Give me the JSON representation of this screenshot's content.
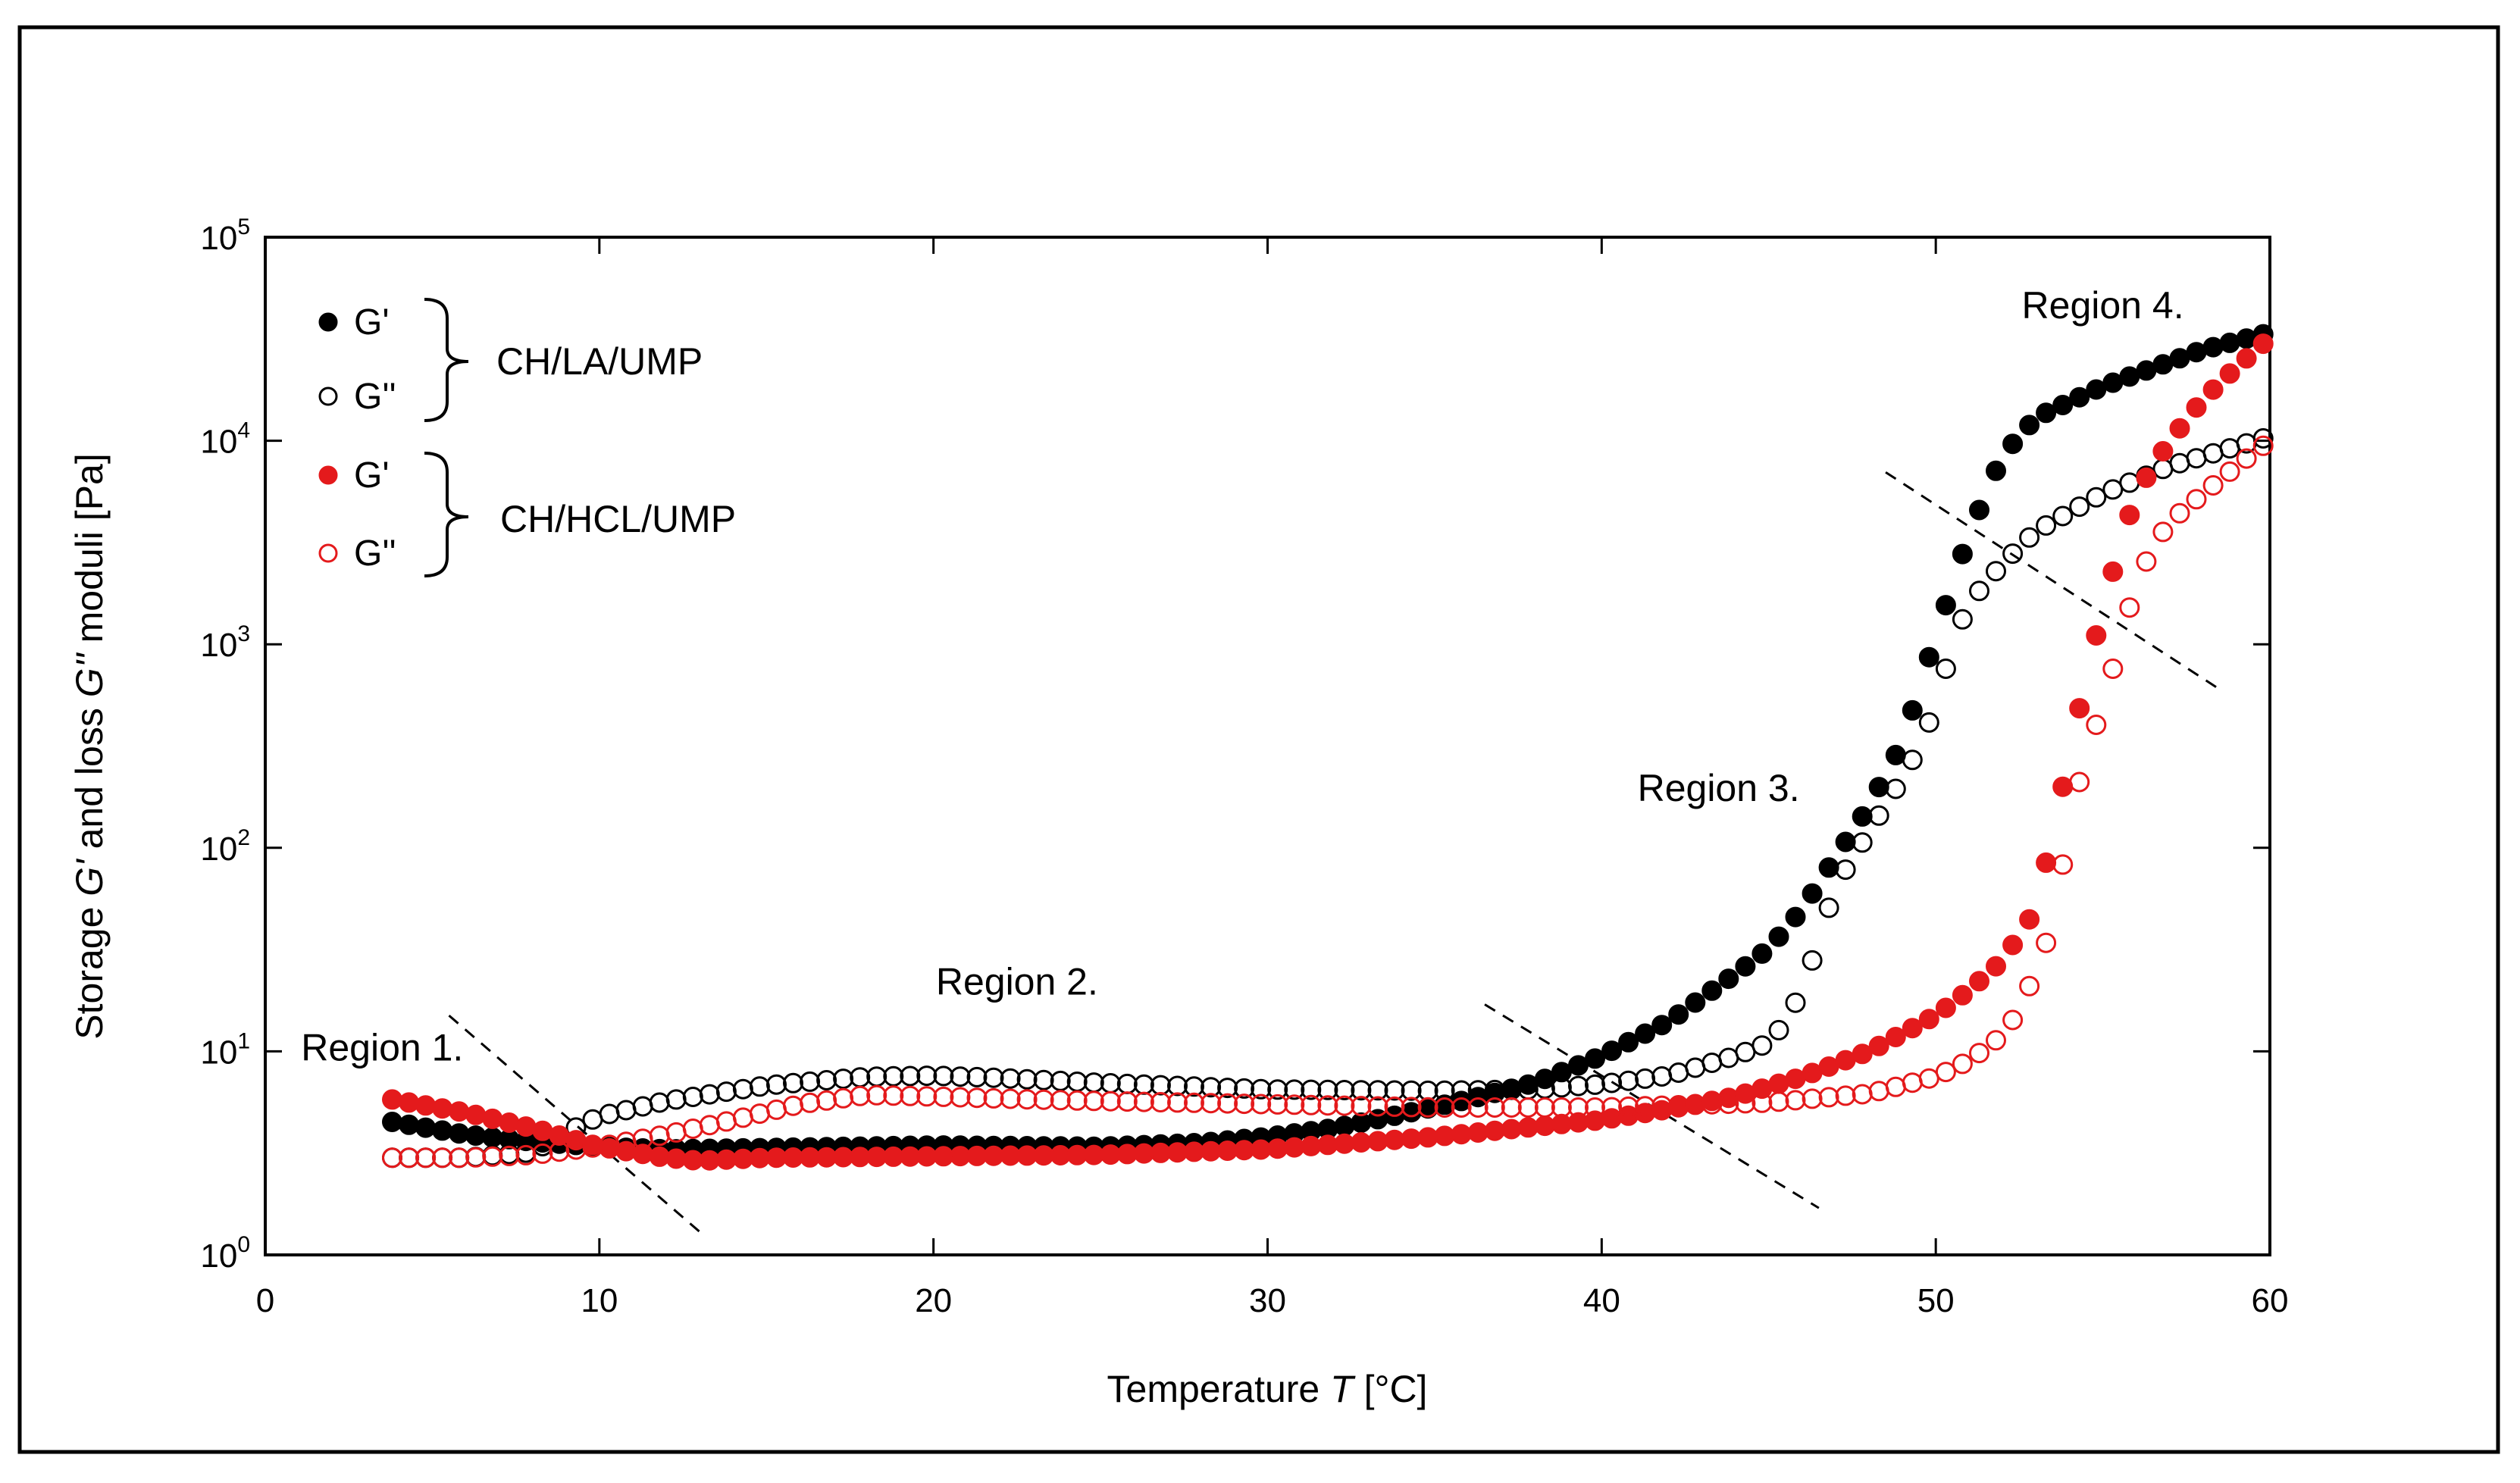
{
  "chart_data": {
    "type": "scatter",
    "xlabel_prefix": "Temperature ",
    "xlabel_var": "T",
    "xlabel_suffix": " [°C]",
    "ylabel_parts": [
      "Storage ",
      "G'",
      " and loss ",
      "G''",
      " moduli [Pa]"
    ],
    "xlim": [
      0,
      60
    ],
    "ylim": [
      1,
      100000
    ],
    "yscale": "log",
    "x_ticks": [
      "0",
      "10",
      "20",
      "30",
      "40",
      "50",
      "60"
    ],
    "y_ticks": [
      {
        "base": "10",
        "exp": "0"
      },
      {
        "base": "10",
        "exp": "1"
      },
      {
        "base": "10",
        "exp": "2"
      },
      {
        "base": "10",
        "exp": "3"
      },
      {
        "base": "10",
        "exp": "4"
      },
      {
        "base": "10",
        "exp": "5"
      }
    ],
    "grid": false,
    "legend_position": "top-left",
    "legend": {
      "groups": [
        {
          "name": "CH/LA/UMP",
          "entries": [
            "G'",
            "G''"
          ],
          "color": "#000000"
        },
        {
          "name": "CH/HCL/UMP",
          "entries": [
            "G'",
            "G''"
          ],
          "color": "#e41a1c"
        }
      ]
    },
    "annotations": [
      {
        "text": "Region 1.",
        "x": 3.5,
        "y": 9.0
      },
      {
        "text": "Region 2.",
        "x": 22.5,
        "y": 19.0
      },
      {
        "text": "Region 3.",
        "x": 43.5,
        "y": 170.0
      },
      {
        "text": "Region 4.",
        "x": 55.0,
        "y": 40000.0
      }
    ],
    "dashed_lines": [
      [
        [
          5.5,
          15
        ],
        [
          13.0,
          1.3
        ]
      ],
      [
        [
          36.5,
          17
        ],
        [
          46.5,
          1.7
        ]
      ],
      [
        [
          48.5,
          7000
        ],
        [
          58.5,
          600
        ]
      ]
    ],
    "series": [
      {
        "name": "CH/LA/UMP G'",
        "color": "#000000",
        "filled": true,
        "anchors": [
          [
            3.8,
            4.5
          ],
          [
            6,
            3.9
          ],
          [
            8,
            3.6
          ],
          [
            10,
            3.4
          ],
          [
            12,
            3.3
          ],
          [
            15,
            3.35
          ],
          [
            20,
            3.45
          ],
          [
            25,
            3.4
          ],
          [
            28,
            3.55
          ],
          [
            30,
            3.8
          ],
          [
            32,
            4.2
          ],
          [
            34,
            4.9
          ],
          [
            36,
            5.8
          ],
          [
            38,
            7.0
          ],
          [
            40,
            9.5
          ],
          [
            42,
            14
          ],
          [
            44,
            24
          ],
          [
            45,
            32
          ],
          [
            46,
            50
          ],
          [
            47,
            90
          ],
          [
            48,
            160
          ],
          [
            49,
            330
          ],
          [
            50,
            1100
          ],
          [
            51,
            3500
          ],
          [
            52,
            8500
          ],
          [
            53,
            13000
          ],
          [
            55,
            18500
          ],
          [
            58,
            28000
          ],
          [
            60,
            34000
          ]
        ]
      },
      {
        "name": "CH/LA/UMP G''",
        "color": "#000000",
        "filled": false,
        "anchors": [
          [
            3.8,
            3.0
          ],
          [
            6,
            3.0
          ],
          [
            8,
            3.2
          ],
          [
            9,
            4.0
          ],
          [
            10,
            4.8
          ],
          [
            12,
            5.7
          ],
          [
            15,
            6.8
          ],
          [
            18,
            7.5
          ],
          [
            20,
            7.6
          ],
          [
            22,
            7.4
          ],
          [
            25,
            7.0
          ],
          [
            30,
            6.5
          ],
          [
            35,
            6.4
          ],
          [
            38,
            6.5
          ],
          [
            40,
            6.9
          ],
          [
            42,
            7.6
          ],
          [
            44,
            9.5
          ],
          [
            45,
            11
          ],
          [
            45.5,
            14
          ],
          [
            46,
            20
          ],
          [
            46.5,
            35
          ],
          [
            47,
            65
          ],
          [
            48,
            120
          ],
          [
            49,
            220
          ],
          [
            49.5,
            310
          ],
          [
            50,
            500
          ],
          [
            50.5,
            1000
          ],
          [
            51,
            1600
          ],
          [
            52,
            2500
          ],
          [
            53,
            3600
          ],
          [
            55,
            5500
          ],
          [
            57,
            7500
          ],
          [
            60,
            10500
          ]
        ]
      },
      {
        "name": "CH/HCL/UMP G'",
        "color": "#e41a1c",
        "filled": true,
        "anchors": [
          [
            3.8,
            5.8
          ],
          [
            6,
            5.0
          ],
          [
            8,
            4.2
          ],
          [
            10,
            3.4
          ],
          [
            12,
            3.0
          ],
          [
            13,
            2.9
          ],
          [
            15,
            3.0
          ],
          [
            20,
            3.05
          ],
          [
            25,
            3.1
          ],
          [
            30,
            3.3
          ],
          [
            35,
            3.8
          ],
          [
            40,
            4.6
          ],
          [
            42,
            5.2
          ],
          [
            44,
            6.0
          ],
          [
            46,
            7.5
          ],
          [
            48,
            10
          ],
          [
            50,
            15
          ],
          [
            51,
            20
          ],
          [
            52,
            28
          ],
          [
            53,
            50
          ],
          [
            53.5,
            120
          ],
          [
            54,
            280
          ],
          [
            54.5,
            700
          ],
          [
            55,
            1500
          ],
          [
            55.5,
            3000
          ],
          [
            56,
            5500
          ],
          [
            57,
            10000
          ],
          [
            58,
            16000
          ],
          [
            59,
            23000
          ],
          [
            60,
            32000
          ]
        ]
      },
      {
        "name": "CH/HCL/UMP G''",
        "color": "#e41a1c",
        "filled": false,
        "anchors": [
          [
            3.8,
            3.0
          ],
          [
            6,
            3.0
          ],
          [
            8,
            3.1
          ],
          [
            10,
            3.4
          ],
          [
            12,
            3.9
          ],
          [
            14,
            4.6
          ],
          [
            16,
            5.5
          ],
          [
            18,
            6.1
          ],
          [
            20,
            6.0
          ],
          [
            23,
            5.8
          ],
          [
            25,
            5.7
          ],
          [
            30,
            5.5
          ],
          [
            35,
            5.3
          ],
          [
            40,
            5.3
          ],
          [
            45,
            5.6
          ],
          [
            48,
            6.2
          ],
          [
            50,
            7.5
          ],
          [
            51,
            9
          ],
          [
            52,
            12
          ],
          [
            52.5,
            16
          ],
          [
            53,
            25
          ],
          [
            53.5,
            42
          ],
          [
            54,
            130
          ],
          [
            54.5,
            290
          ],
          [
            55,
            500
          ],
          [
            55.5,
            1000
          ],
          [
            56,
            2000
          ],
          [
            56.5,
            3000
          ],
          [
            57,
            4000
          ],
          [
            58,
            5500
          ],
          [
            59,
            7500
          ],
          [
            60,
            10000
          ]
        ]
      }
    ]
  }
}
